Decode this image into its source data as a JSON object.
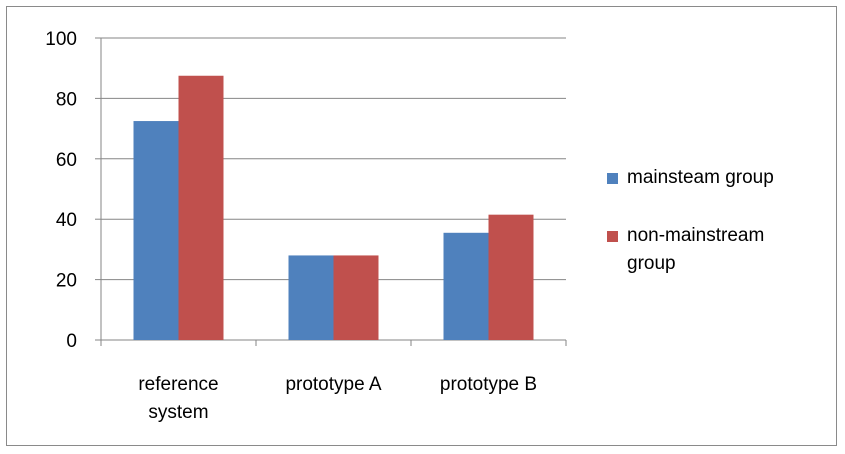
{
  "chart_data": {
    "type": "bar",
    "categories": [
      [
        "reference",
        "system"
      ],
      [
        "prototype A"
      ],
      [
        "prototype B"
      ]
    ],
    "series": [
      {
        "name": "mainsteam group",
        "color": "#4f81bd",
        "values": [
          72.5,
          28,
          35.5
        ]
      },
      {
        "name": "non-mainstream group",
        "color": "#c0504d",
        "values": [
          87.5,
          28,
          41.5
        ]
      }
    ],
    "ylim": [
      0,
      100
    ],
    "yticks": [
      "0",
      "20",
      "40",
      "60",
      "80",
      "100"
    ],
    "ytick_values": [
      0,
      20,
      40,
      60,
      80,
      100
    ],
    "grid": true,
    "legend_position": "right",
    "legend": [
      {
        "lines": [
          "mainsteam group"
        ],
        "color": "#4f81bd"
      },
      {
        "lines": [
          "non-mainstream",
          "group"
        ],
        "color": "#c0504d"
      }
    ]
  }
}
